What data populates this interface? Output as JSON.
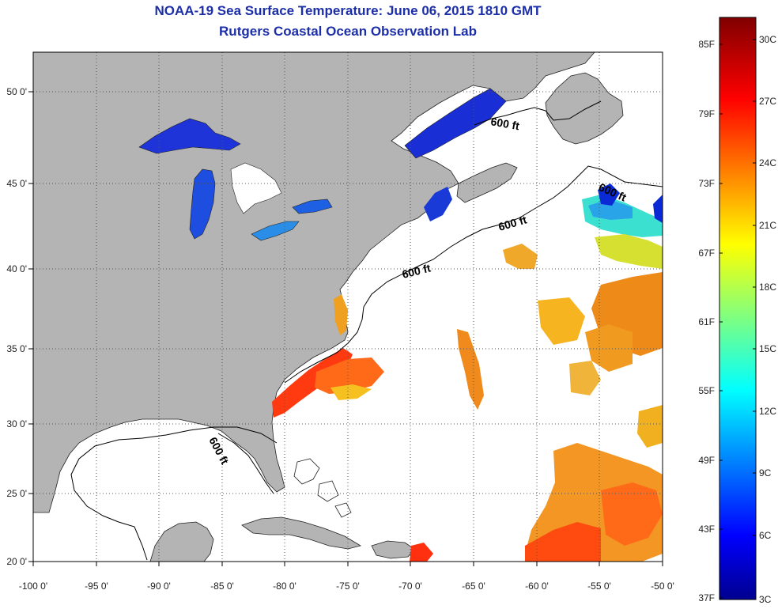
{
  "title": "NOAA-19 Sea Surface Temperature:  June 06, 2015 1810 GMT",
  "subtitle": "Rutgers Coastal Ocean Observation Lab",
  "map": {
    "lon_range": [
      -100,
      -50
    ],
    "lat_range": [
      20,
      52.5
    ],
    "lon_ticks": [
      "-100 0'",
      "-95 0'",
      "-90 0'",
      "-85 0'",
      "-80 0'",
      "-75 0'",
      "-70 0'",
      "-65 0'",
      "-60 0'",
      "-55 0'",
      "-50 0'"
    ],
    "lat_ticks": [
      "20 0'",
      "25 0'",
      "30 0'",
      "35 0'",
      "40 0'",
      "45 0'",
      "50 0'"
    ],
    "contour_label": "600 ft",
    "colors": {
      "land": "#b4b4b4",
      "ocean": "#ffffff"
    }
  },
  "colorbar": {
    "celsius": [
      "30C",
      "27C",
      "24C",
      "21C",
      "18C",
      "15C",
      "12C",
      "9C",
      "6C",
      "3C"
    ],
    "fahrenheit": [
      "85F",
      "79F",
      "73F",
      "67F",
      "61F",
      "55F",
      "49F",
      "43F",
      "37F"
    ],
    "range_c": [
      3,
      31.5
    ]
  }
}
